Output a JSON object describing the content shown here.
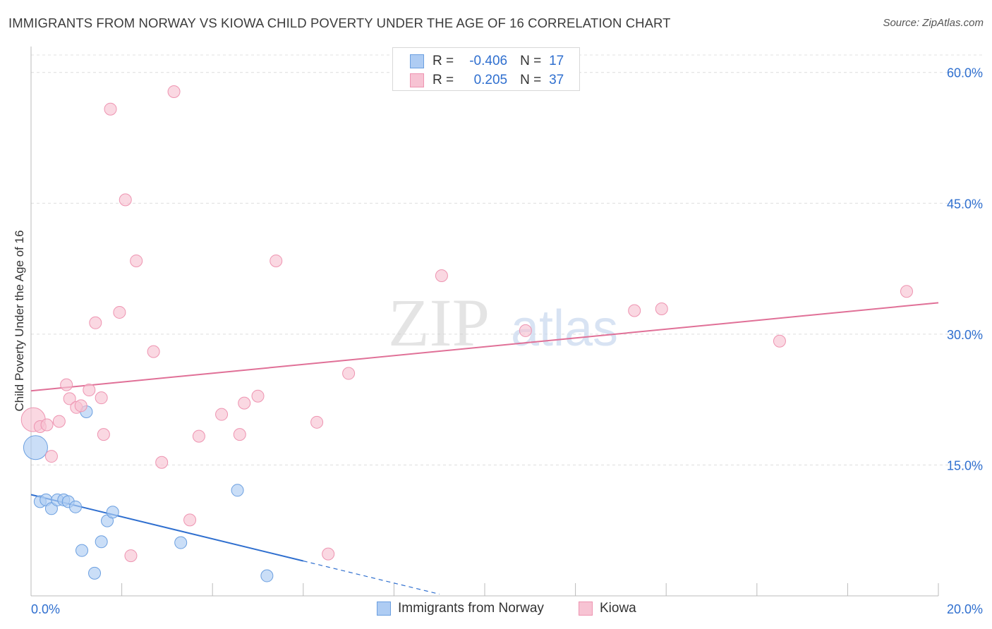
{
  "header": {
    "title": "IMMIGRANTS FROM NORWAY VS KIOWA CHILD POVERTY UNDER THE AGE OF 16 CORRELATION CHART",
    "source": "Source: ZipAtlas.com"
  },
  "legend": {
    "rows": [
      {
        "r_label": "R =",
        "r_value": "-0.406",
        "n_label": "N =",
        "n_value": "17"
      },
      {
        "r_label": "R =",
        "r_value": "0.205",
        "n_label": "N =",
        "n_value": "37"
      }
    ]
  },
  "bottom_legend": {
    "items": [
      {
        "label": "Immigrants from Norway"
      },
      {
        "label": "Kiowa"
      }
    ]
  },
  "colors": {
    "norway_fill": "#aeccf3",
    "norway_stroke": "#6b9fe0",
    "norway_line": "#2f6fcf",
    "kiowa_fill": "#f7c3d3",
    "kiowa_stroke": "#ee94b1",
    "kiowa_line": "#e07097",
    "tick_text": "#2f6fcf",
    "watermark": "#c8d8ef"
  },
  "watermark": {
    "zip": "ZIP",
    "atlas": "atlas"
  },
  "chart_data": {
    "type": "scatter",
    "title": "IMMIGRANTS FROM NORWAY VS KIOWA CHILD POVERTY UNDER THE AGE OF 16 CORRELATION CHART",
    "xlabel": "",
    "ylabel": "Child Poverty Under the Age of 16",
    "xlim": [
      0,
      20
    ],
    "ylim": [
      0,
      62
    ],
    "x_tick_labels": [
      "0.0%",
      "20.0%"
    ],
    "y_ticks": [
      15,
      30,
      45,
      60
    ],
    "y_tick_labels": [
      "15.0%",
      "30.0%",
      "45.0%",
      "60.0%"
    ],
    "grid": true,
    "legend_position": "top-center",
    "series": [
      {
        "name": "Immigrants from Norway",
        "color": "#aeccf3",
        "points": [
          {
            "x": 0.1,
            "y": 17.0,
            "big": true
          },
          {
            "x": 0.2,
            "y": 10.8
          },
          {
            "x": 0.33,
            "y": 11.0
          },
          {
            "x": 0.45,
            "y": 10.0
          },
          {
            "x": 0.58,
            "y": 11.0
          },
          {
            "x": 0.72,
            "y": 11.0
          },
          {
            "x": 0.82,
            "y": 10.8
          },
          {
            "x": 0.98,
            "y": 10.2
          },
          {
            "x": 1.12,
            "y": 5.2
          },
          {
            "x": 1.22,
            "y": 21.1
          },
          {
            "x": 1.4,
            "y": 2.6
          },
          {
            "x": 1.55,
            "y": 6.2
          },
          {
            "x": 1.68,
            "y": 8.6
          },
          {
            "x": 1.8,
            "y": 9.6
          },
          {
            "x": 3.3,
            "y": 6.1
          },
          {
            "x": 4.55,
            "y": 12.1
          },
          {
            "x": 5.2,
            "y": 2.3
          }
        ],
        "trend": {
          "x0": 0,
          "y0": 11.6,
          "x1": 6.0,
          "y1": 4.0,
          "dashed_to_x": 9.0,
          "dashed_to_y": 0.2
        }
      },
      {
        "name": "Kiowa",
        "color": "#f7c3d3",
        "points": [
          {
            "x": 0.05,
            "y": 20.2,
            "big": true
          },
          {
            "x": 0.2,
            "y": 19.4
          },
          {
            "x": 0.35,
            "y": 19.6
          },
          {
            "x": 0.45,
            "y": 16.0
          },
          {
            "x": 0.62,
            "y": 20.0
          },
          {
            "x": 0.78,
            "y": 24.2
          },
          {
            "x": 0.85,
            "y": 22.6
          },
          {
            "x": 1.0,
            "y": 21.6
          },
          {
            "x": 1.1,
            "y": 21.8
          },
          {
            "x": 1.28,
            "y": 23.6
          },
          {
            "x": 1.42,
            "y": 31.3
          },
          {
            "x": 1.55,
            "y": 22.7
          },
          {
            "x": 1.6,
            "y": 18.5
          },
          {
            "x": 1.75,
            "y": 55.8
          },
          {
            "x": 1.95,
            "y": 32.5
          },
          {
            "x": 2.08,
            "y": 45.4
          },
          {
            "x": 2.2,
            "y": 4.6
          },
          {
            "x": 2.32,
            "y": 38.4
          },
          {
            "x": 2.7,
            "y": 28.0
          },
          {
            "x": 2.88,
            "y": 15.3
          },
          {
            "x": 3.15,
            "y": 57.8
          },
          {
            "x": 3.5,
            "y": 8.7
          },
          {
            "x": 3.7,
            "y": 18.3
          },
          {
            "x": 4.2,
            "y": 20.8
          },
          {
            "x": 4.6,
            "y": 18.5
          },
          {
            "x": 4.7,
            "y": 22.1
          },
          {
            "x": 5.0,
            "y": 22.9
          },
          {
            "x": 5.4,
            "y": 38.4
          },
          {
            "x": 6.3,
            "y": 19.9
          },
          {
            "x": 6.55,
            "y": 4.8
          },
          {
            "x": 7.0,
            "y": 25.5
          },
          {
            "x": 9.05,
            "y": 36.7
          },
          {
            "x": 10.9,
            "y": 30.4
          },
          {
            "x": 13.3,
            "y": 32.7
          },
          {
            "x": 13.9,
            "y": 32.9
          },
          {
            "x": 16.5,
            "y": 29.2
          },
          {
            "x": 19.3,
            "y": 34.9
          }
        ],
        "trend": {
          "x0": 0,
          "y0": 23.5,
          "x1": 20.0,
          "y1": 33.6
        }
      }
    ]
  }
}
